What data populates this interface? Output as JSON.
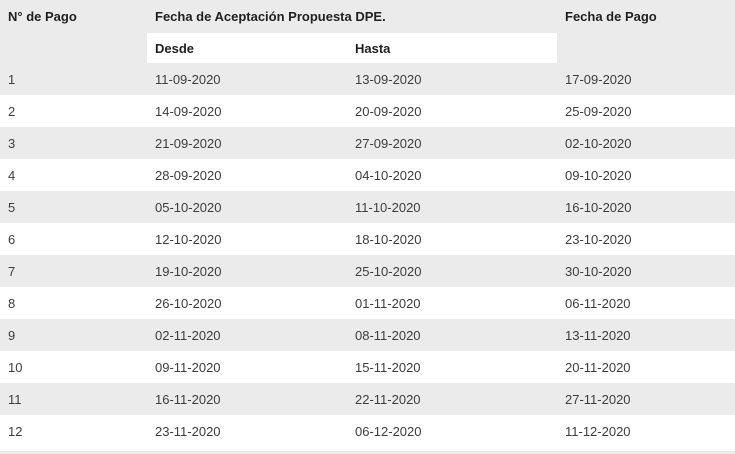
{
  "colors": {
    "stripe": "#ebebeb",
    "header_text": "#212121",
    "cell_text": "#3d3d3d",
    "background": "#ffffff"
  },
  "table": {
    "columns": {
      "payment_number": "N° de Pago",
      "acceptance_group": "Fecha de Aceptación Propuesta DPE.",
      "from": "Desde",
      "to": "Hasta",
      "payment_date": "Fecha de Pago"
    },
    "rows": [
      {
        "n": "1",
        "desde": "11-09-2020",
        "hasta": "13-09-2020",
        "pago": "17-09-2020"
      },
      {
        "n": "2",
        "desde": "14-09-2020",
        "hasta": "20-09-2020",
        "pago": "25-09-2020"
      },
      {
        "n": "3",
        "desde": "21-09-2020",
        "hasta": "27-09-2020",
        "pago": "02-10-2020"
      },
      {
        "n": "4",
        "desde": "28-09-2020",
        "hasta": "04-10-2020",
        "pago": "09-10-2020"
      },
      {
        "n": "5",
        "desde": "05-10-2020",
        "hasta": "11-10-2020",
        "pago": "16-10-2020"
      },
      {
        "n": "6",
        "desde": "12-10-2020",
        "hasta": "18-10-2020",
        "pago": "23-10-2020"
      },
      {
        "n": "7",
        "desde": "19-10-2020",
        "hasta": "25-10-2020",
        "pago": "30-10-2020"
      },
      {
        "n": "8",
        "desde": "26-10-2020",
        "hasta": "01-11-2020",
        "pago": "06-11-2020"
      },
      {
        "n": "9",
        "desde": "02-11-2020",
        "hasta": "08-11-2020",
        "pago": "13-11-2020"
      },
      {
        "n": "10",
        "desde": "09-11-2020",
        "hasta": "15-11-2020",
        "pago": "20-11-2020"
      },
      {
        "n": "11",
        "desde": "16-11-2020",
        "hasta": "22-11-2020",
        "pago": "27-11-2020"
      },
      {
        "n": "12",
        "desde": "23-11-2020",
        "hasta": "06-12-2020",
        "pago": "11-12-2020"
      }
    ]
  }
}
